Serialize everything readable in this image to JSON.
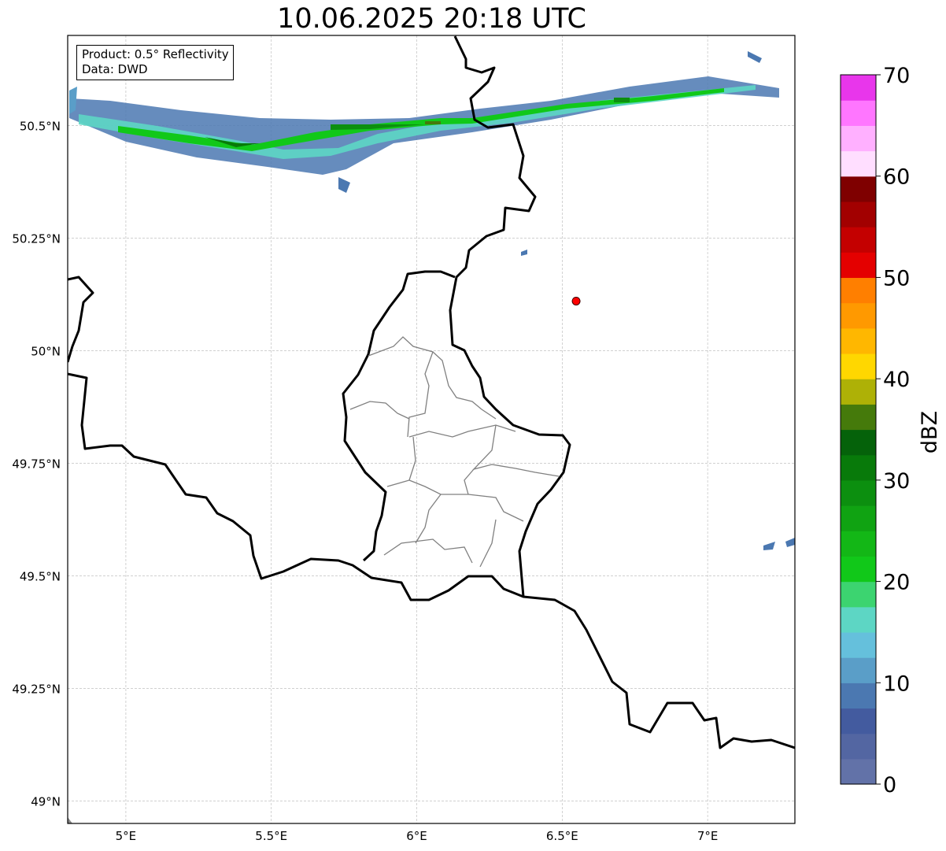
{
  "map": {
    "title": "10.06.2025 20:18 UTC",
    "info_box": {
      "product_line": "Product: 0.5° Reflectivity",
      "data_line": "Data: DWD"
    },
    "extent": {
      "lon_min": 4.8,
      "lon_max": 7.3,
      "lat_min": 48.95,
      "lat_max": 50.7
    },
    "gridlines": true,
    "x_ticks": [
      {
        "lon": 5.0,
        "label": "5°E"
      },
      {
        "lon": 5.5,
        "label": "5.5°E"
      },
      {
        "lon": 6.0,
        "label": "6°E"
      },
      {
        "lon": 6.5,
        "label": "6.5°E"
      },
      {
        "lon": 7.0,
        "label": "7°E"
      }
    ],
    "y_ticks": [
      {
        "lat": 50.5,
        "label": "50.5°N"
      },
      {
        "lat": 50.25,
        "label": "50.25°N"
      },
      {
        "lat": 50.0,
        "label": "50°N"
      },
      {
        "lat": 49.75,
        "label": "49.75°N"
      },
      {
        "lat": 49.5,
        "label": "49.5°N"
      },
      {
        "lat": 49.25,
        "label": "49.25°N"
      },
      {
        "lat": 49.0,
        "label": "49°N"
      }
    ],
    "radar_site": {
      "lon": 6.548,
      "lat": 50.11,
      "color": "#ff0000"
    }
  },
  "colorbar": {
    "label": "dBZ",
    "min": 0,
    "max": 70,
    "ticks": [
      {
        "value": 0,
        "label": "0"
      },
      {
        "value": 10,
        "label": "10"
      },
      {
        "value": 20,
        "label": "20"
      },
      {
        "value": 30,
        "label": "30"
      },
      {
        "value": 40,
        "label": "40"
      },
      {
        "value": 50,
        "label": "50"
      },
      {
        "value": 60,
        "label": "60"
      },
      {
        "value": 70,
        "label": "70"
      }
    ],
    "colors": [
      "#6272a8",
      "#5366a2",
      "#435b9f",
      "#4b78b1",
      "#5a9ec8",
      "#65c0dc",
      "#5dd6c4",
      "#3cd470",
      "#11c819",
      "#13b716",
      "#10a312",
      "#0c8f0f",
      "#087a0a",
      "#05620a",
      "#457a0b",
      "#aeb106",
      "#ffd700",
      "#ffb700",
      "#ff9900",
      "#ff7f00",
      "#e40000",
      "#c40000",
      "#a20000",
      "#7f0000",
      "#ffdeff",
      "#ffb0ff",
      "#ff76ff",
      "#e836eb"
    ]
  }
}
